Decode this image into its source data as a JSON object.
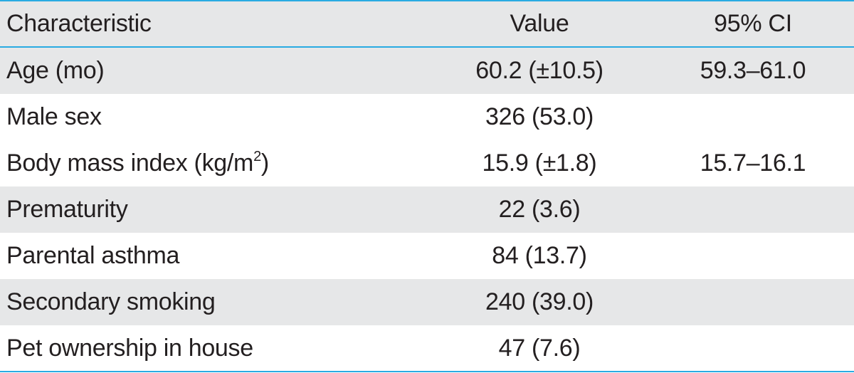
{
  "table": {
    "columns": [
      "Characteristic",
      "Value",
      "95% CI"
    ],
    "rows": [
      {
        "characteristic": "Age (mo)",
        "value": "60.2 (±10.5)",
        "ci": "59.3–61.0"
      },
      {
        "characteristic": "Male sex",
        "value": "326 (53.0)",
        "ci": ""
      },
      {
        "characteristic": "Body mass index (kg/m",
        "characteristic_sup": "2",
        "characteristic_suffix": ")",
        "value": "15.9 (±1.8)",
        "ci": "15.7–16.1"
      },
      {
        "characteristic": "Prematurity",
        "value": "22 (3.6)",
        "ci": ""
      },
      {
        "characteristic": "Parental asthma",
        "value": "84 (13.7)",
        "ci": ""
      },
      {
        "characteristic": "Secondary smoking",
        "value": "240 (39.0)",
        "ci": ""
      },
      {
        "characteristic": "Pet ownership in house",
        "value": "47 (7.6)",
        "ci": ""
      }
    ]
  },
  "colors": {
    "rule": "#29abe2",
    "shade": "#e6e7e8",
    "text": "#231f20"
  }
}
